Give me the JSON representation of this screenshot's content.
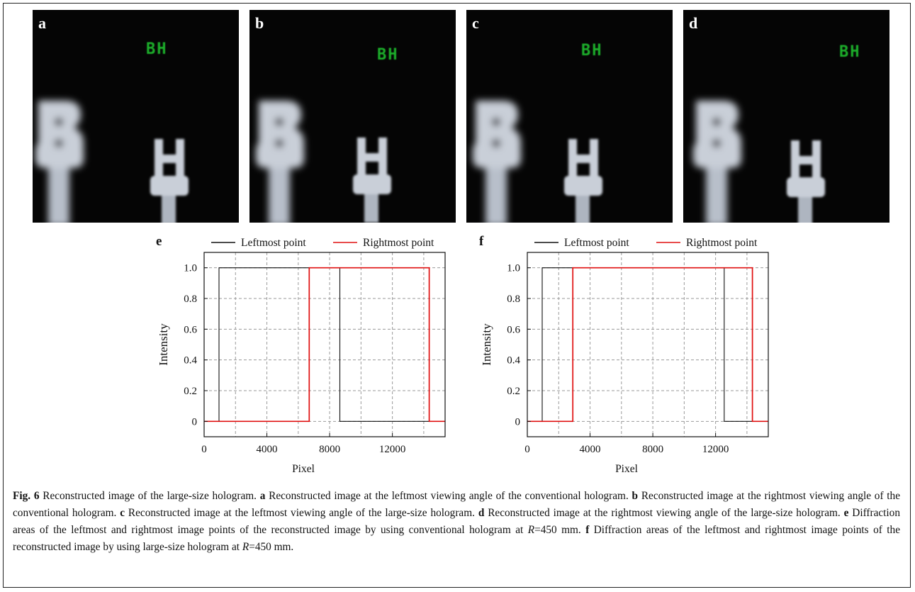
{
  "figure": {
    "panels": [
      {
        "letter": "a",
        "text": "BH"
      },
      {
        "letter": "b",
        "text": "BH"
      },
      {
        "letter": "c",
        "text": "BH"
      },
      {
        "letter": "d",
        "text": "BH"
      }
    ],
    "colors": {
      "photo_bg": "#050505",
      "green_text": "#1fae2a",
      "prop": "#c9cfd8",
      "black_line": "#111111",
      "red_line": "#e01010"
    }
  },
  "chart_data": [
    {
      "type": "line",
      "panel_letter": "e",
      "xlabel": "Pixel",
      "ylabel": "Intensity",
      "xlim": [
        0,
        15360
      ],
      "ylim": [
        -0.1,
        1.1
      ],
      "xticks": [
        0,
        4000,
        8000,
        12000
      ],
      "xtick_labels": [
        "0",
        "4000",
        "8000",
        "12000"
      ],
      "xgrid": [
        0,
        2000,
        4000,
        6000,
        8000,
        10000,
        12000,
        14000
      ],
      "yticks": [
        0,
        0.2,
        0.4,
        0.6,
        0.8,
        1.0
      ],
      "ytick_labels": [
        "0",
        "0.2",
        "0.4",
        "0.6",
        "0.8",
        "1.0"
      ],
      "grid": true,
      "legend_position": "top",
      "series": [
        {
          "name": "Leftmost point",
          "color": "#111111",
          "x": [
            0,
            950,
            950,
            8650,
            8650,
            15360
          ],
          "y": [
            0,
            0,
            1,
            1,
            0,
            0
          ]
        },
        {
          "name": "Rightmost point",
          "color": "#e01010",
          "x": [
            0,
            6700,
            6700,
            14350,
            14350,
            15360
          ],
          "y": [
            0,
            0,
            1,
            1,
            0,
            0
          ]
        }
      ]
    },
    {
      "type": "line",
      "panel_letter": "f",
      "xlabel": "Pixel",
      "ylabel": "Intensity",
      "xlim": [
        0,
        15360
      ],
      "ylim": [
        -0.1,
        1.1
      ],
      "xticks": [
        0,
        4000,
        8000,
        12000
      ],
      "xtick_labels": [
        "0",
        "4000",
        "8000",
        "12000"
      ],
      "xgrid": [
        0,
        2000,
        4000,
        6000,
        8000,
        10000,
        12000,
        14000
      ],
      "yticks": [
        0,
        0.2,
        0.4,
        0.6,
        0.8,
        1.0
      ],
      "ytick_labels": [
        "0",
        "0.2",
        "0.4",
        "0.6",
        "0.8",
        "1.0"
      ],
      "grid": true,
      "legend_position": "top",
      "series": [
        {
          "name": "Leftmost point",
          "color": "#111111",
          "x": [
            0,
            950,
            950,
            12550,
            12550,
            15360
          ],
          "y": [
            0,
            0,
            1,
            1,
            0,
            0
          ]
        },
        {
          "name": "Rightmost point",
          "color": "#e01010",
          "x": [
            0,
            2900,
            2900,
            14350,
            14350,
            15360
          ],
          "y": [
            0,
            0,
            1,
            1,
            0,
            0
          ]
        }
      ]
    }
  ],
  "caption": {
    "fig_label": "Fig. 6",
    "title": " Reconstructed image of the large-size hologram. ",
    "a_letter": "a",
    "a_text": " Reconstructed image at the leftmost viewing angle of the conventional hologram. ",
    "b_letter": "b",
    "b_text": " Reconstructed image at the rightmost viewing angle of the conventional hologram. ",
    "c_letter": "c",
    "c_text": " Reconstructed image at the leftmost viewing angle of the large-size hologram. ",
    "d_letter": "d",
    "d_text": " Reconstructed image at the rightmost viewing angle of the large-size hologram. ",
    "e_letter": "e",
    "e_text": " Diffraction areas of the leftmost and rightmost image points of the reconstructed image by using conventional hologram at ",
    "e_var": "R",
    "e_value": "=450 mm. ",
    "f_letter": "f",
    "f_text": " Diffraction areas of the leftmost and rightmost image points of the reconstructed image by using large-size hologram at ",
    "f_var": "R",
    "f_value": "=450 mm."
  }
}
